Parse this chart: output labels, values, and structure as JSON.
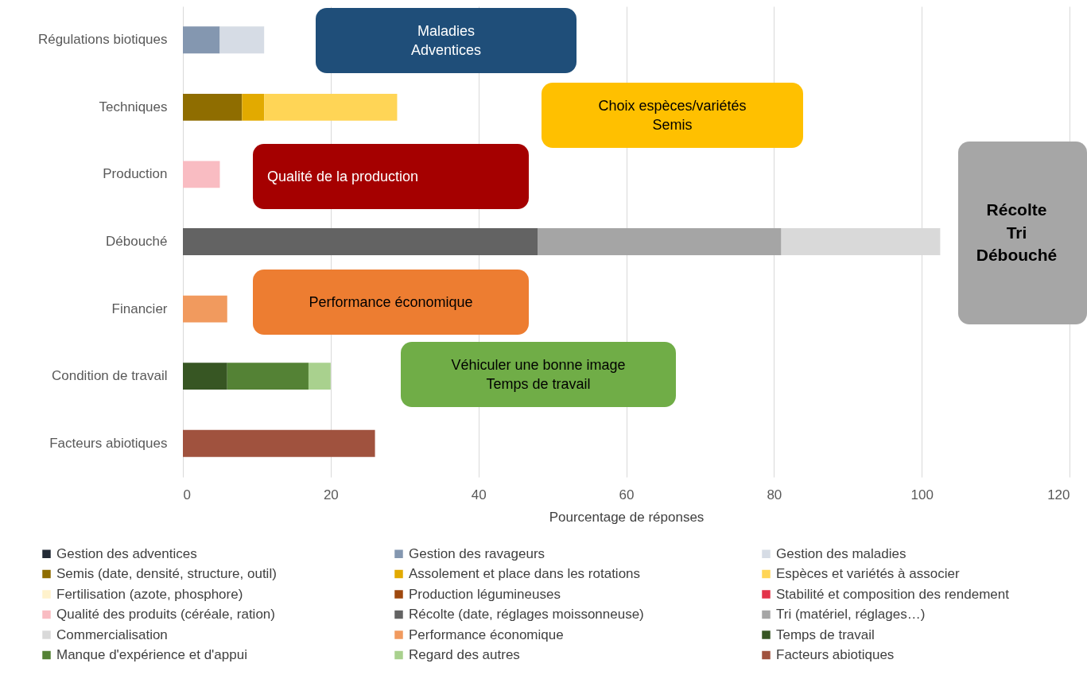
{
  "chart_data": {
    "type": "bar",
    "orientation": "horizontal",
    "stacked": true,
    "categories": [
      "Régulations biotiques",
      "Techniques",
      "Production",
      "Débouché",
      "Financier",
      "Condition de travail",
      "Facteurs abiotiques"
    ],
    "xlabel": "Pourcentage de réponses",
    "xlim": [
      0,
      120
    ],
    "xticks": [
      0,
      20,
      40,
      60,
      80,
      100,
      120
    ],
    "grid": "x",
    "legend": "bottom",
    "series": [
      {
        "name": "Gestion des adventices",
        "color": "#222a35",
        "values": [
          null,
          null,
          null,
          null,
          null,
          null,
          null
        ]
      },
      {
        "name": "Gestion des ravageurs",
        "color": "#8497b0",
        "values": [
          5,
          null,
          null,
          null,
          null,
          null,
          null
        ]
      },
      {
        "name": "Gestion des maladies",
        "color": "#d6dce5",
        "values": [
          6,
          null,
          null,
          null,
          null,
          null,
          null
        ]
      },
      {
        "name": "Semis (date, densité, structure, outil)",
        "color": "#8f6d00",
        "values": [
          null,
          8,
          null,
          null,
          null,
          null,
          null
        ]
      },
      {
        "name": "Assolement et place dans les rotations",
        "color": "#e2aa00",
        "values": [
          null,
          3,
          null,
          null,
          null,
          null,
          null
        ]
      },
      {
        "name": "Espèces et variétés à associer",
        "color": "#ffd556",
        "values": [
          null,
          18,
          null,
          null,
          null,
          null,
          null
        ]
      },
      {
        "name": "Fertilisation (azote, phosphore)",
        "color": "#fff2cc",
        "values": [
          null,
          null,
          null,
          null,
          null,
          null,
          null
        ]
      },
      {
        "name": "Production légumineuses",
        "color": "#9e480e",
        "values": [
          null,
          null,
          null,
          null,
          null,
          null,
          null
        ]
      },
      {
        "name": "Stabilité et composition des rendement",
        "color": "#e3334a",
        "values": [
          null,
          null,
          null,
          null,
          null,
          null,
          null
        ]
      },
      {
        "name": "Qualité des produits (céréale, ration)",
        "color": "#f9bcc2",
        "values": [
          null,
          null,
          5,
          null,
          null,
          null,
          null
        ]
      },
      {
        "name": "Récolte (date, réglages moissonneuse)",
        "color": "#636363",
        "values": [
          null,
          null,
          null,
          48,
          null,
          null,
          null
        ]
      },
      {
        "name": "Tri (matériel, réglages…)",
        "color": "#a5a5a5",
        "values": [
          null,
          null,
          null,
          33,
          null,
          null,
          null
        ]
      },
      {
        "name": "Commercialisation",
        "color": "#d9d9d9",
        "values": [
          null,
          null,
          null,
          21.5,
          null,
          null,
          null
        ]
      },
      {
        "name": "Performance économique",
        "color": "#f19a5e",
        "values": [
          null,
          null,
          null,
          null,
          6,
          null,
          null
        ]
      },
      {
        "name": "Temps de travail",
        "color": "#375623",
        "values": [
          null,
          null,
          null,
          null,
          null,
          6,
          null
        ]
      },
      {
        "name": "Manque d'expérience et d'appui",
        "color": "#548235",
        "values": [
          null,
          null,
          null,
          null,
          null,
          11,
          null
        ]
      },
      {
        "name": "Regard des autres",
        "color": "#a9d18e",
        "values": [
          null,
          null,
          null,
          null,
          null,
          3,
          null
        ]
      },
      {
        "name": "Facteurs abiotiques",
        "color": "#a0523e",
        "values": [
          null,
          null,
          null,
          null,
          null,
          null,
          26
        ]
      }
    ],
    "annotations": [
      "Maladies\nAdventices",
      "Choix espèces/variétés\nSemis",
      "Qualité de la production",
      "Récolte\nTri\nDébouché",
      "Performance économique",
      "Véhiculer une bonne image\nTemps de travail"
    ]
  }
}
